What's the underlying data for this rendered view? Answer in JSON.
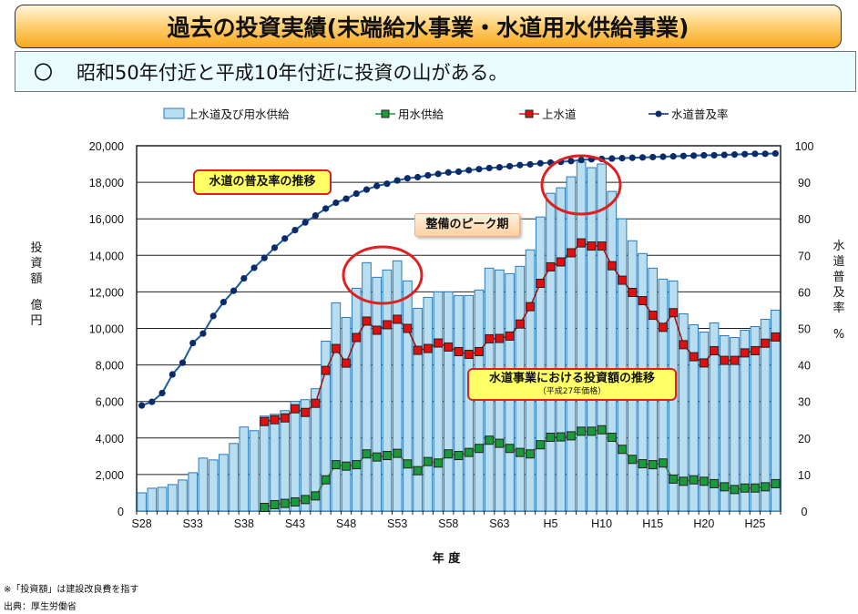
{
  "header": {
    "title": "過去の投資実績(末端給水事業・水道用水供給事業)",
    "bullet": "〇",
    "summary": "昭和50年付近と平成10年付近に投資の山がある。"
  },
  "annotations": {
    "penetration_trend": "水道の普及率の推移",
    "peak_period": "整備のピーク期",
    "investment_trend": "水道事業における投資額の推移",
    "price_basis": "（平成27年価格）"
  },
  "footer": {
    "note": "※「投資額」は建設改良費を指す",
    "source": "出典：厚生労働省"
  },
  "colors": {
    "bar": "#b8def0",
    "bar_edge": "#2a7ab8",
    "supply": "#1a9a3a",
    "upper": "#e01010",
    "rate": "#0a2a6a",
    "highlight": "#e02020"
  },
  "chart_data": {
    "type": "bar+line",
    "title": "",
    "xlabel": "年 度",
    "ylabel": "投資額 億円",
    "ylabel_chars": [
      "投",
      "資",
      "額",
      "",
      "億",
      "円"
    ],
    "y2label": "水道普及率 %",
    "y2label_chars": [
      "水",
      "道",
      "普",
      "及",
      "率",
      "",
      "%"
    ],
    "ylim": [
      0,
      20000
    ],
    "y2lim": [
      0,
      100
    ],
    "yticks": [
      "0",
      "2,000",
      "4,000",
      "6,000",
      "8,000",
      "10,000",
      "12,000",
      "14,000",
      "16,000",
      "18,000",
      "20,000"
    ],
    "y2ticks": [
      "0",
      "10",
      "20",
      "30",
      "40",
      "50",
      "60",
      "70",
      "80",
      "90",
      "100"
    ],
    "xtick_labels": [
      "S28",
      "S33",
      "S38",
      "S43",
      "S48",
      "S53",
      "S58",
      "S63",
      "H5",
      "H10",
      "H15",
      "H20",
      "H25"
    ],
    "grid": "horizontal",
    "legend_position": "top",
    "categories": [
      "S28",
      "S29",
      "S30",
      "S31",
      "S32",
      "S33",
      "S34",
      "S35",
      "S36",
      "S37",
      "S38",
      "S39",
      "S40",
      "S41",
      "S42",
      "S43",
      "S44",
      "S45",
      "S46",
      "S47",
      "S48",
      "S49",
      "S50",
      "S51",
      "S52",
      "S53",
      "S54",
      "S55",
      "S56",
      "S57",
      "S58",
      "S59",
      "S60",
      "S61",
      "S62",
      "S63",
      "H1",
      "H2",
      "H3",
      "H4",
      "H5",
      "H6",
      "H7",
      "H8",
      "H9",
      "H10",
      "H11",
      "H12",
      "H13",
      "H14",
      "H15",
      "H16",
      "H17",
      "H18",
      "H19",
      "H20",
      "H21",
      "H22",
      "H23",
      "H24",
      "H25",
      "H26",
      "H27"
    ],
    "series": [
      {
        "name": "上水道及び用水供給",
        "type": "bar",
        "axis": "left",
        "values": [
          1000,
          1250,
          1300,
          1450,
          1700,
          2100,
          2900,
          2800,
          3100,
          3700,
          4600,
          4400,
          5200,
          5300,
          5500,
          6000,
          6100,
          6700,
          9300,
          11400,
          10600,
          12200,
          13600,
          12800,
          13200,
          13700,
          12600,
          11100,
          11700,
          12000,
          12000,
          11800,
          11800,
          12100,
          13300,
          13200,
          13000,
          13400,
          14300,
          16100,
          17400,
          17700,
          18300,
          19100,
          18800,
          19000,
          17500,
          16000,
          14800,
          14100,
          13300,
          12700,
          12600,
          10800,
          10200,
          9800,
          10300,
          9600,
          9500,
          9900,
          10100,
          10500,
          11000
        ]
      },
      {
        "name": "用水供給",
        "type": "line",
        "axis": "left",
        "values": [
          null,
          null,
          null,
          null,
          null,
          null,
          null,
          null,
          null,
          null,
          null,
          null,
          200,
          350,
          420,
          500,
          630,
          830,
          1710,
          2540,
          2460,
          2540,
          3130,
          2960,
          3040,
          3160,
          2580,
          2210,
          2710,
          2630,
          3130,
          3040,
          3210,
          3430,
          3880,
          3710,
          3430,
          3210,
          3130,
          3630,
          4040,
          4060,
          4120,
          4370,
          4370,
          4450,
          4040,
          3380,
          2830,
          2590,
          2540,
          2630,
          1750,
          1630,
          1710,
          1630,
          1500,
          1330,
          1180,
          1260,
          1260,
          1330,
          1500
        ]
      },
      {
        "name": "上水道",
        "type": "line",
        "axis": "left",
        "values": [
          null,
          null,
          null,
          null,
          null,
          null,
          null,
          null,
          null,
          null,
          null,
          null,
          4900,
          5000,
          5100,
          5600,
          5400,
          5900,
          7700,
          8900,
          8100,
          9500,
          10400,
          9900,
          10200,
          10500,
          10000,
          8800,
          8900,
          9200,
          8980,
          8730,
          8580,
          8730,
          9430,
          9450,
          9580,
          10240,
          11190,
          12470,
          13370,
          13640,
          14140,
          14680,
          14510,
          14510,
          13430,
          12640,
          11970,
          11520,
          10720,
          10060,
          10860,
          9110,
          8450,
          8110,
          8780,
          8250,
          8250,
          8660,
          8780,
          9190,
          9530
        ]
      },
      {
        "name": "水道普及率",
        "type": "line",
        "axis": "right",
        "values": [
          28.9,
          29.9,
          32.3,
          37.4,
          40.6,
          46.0,
          48.6,
          53.4,
          57.2,
          60.3,
          63.7,
          66.6,
          69.3,
          72.1,
          74.6,
          76.9,
          79.0,
          80.9,
          82.8,
          84.4,
          85.5,
          86.9,
          88.0,
          89.0,
          89.6,
          90.5,
          91.1,
          91.4,
          91.9,
          92.3,
          92.7,
          92.9,
          93.3,
          93.6,
          93.9,
          94.1,
          94.4,
          94.7,
          94.9,
          95.2,
          95.4,
          95.6,
          95.8,
          96.1,
          96.3,
          96.4,
          96.5,
          96.6,
          96.7,
          96.8,
          96.9,
          97.0,
          97.1,
          97.2,
          97.3,
          97.4,
          97.4,
          97.5,
          97.6,
          97.7,
          97.8,
          97.8,
          97.9
        ]
      }
    ]
  }
}
